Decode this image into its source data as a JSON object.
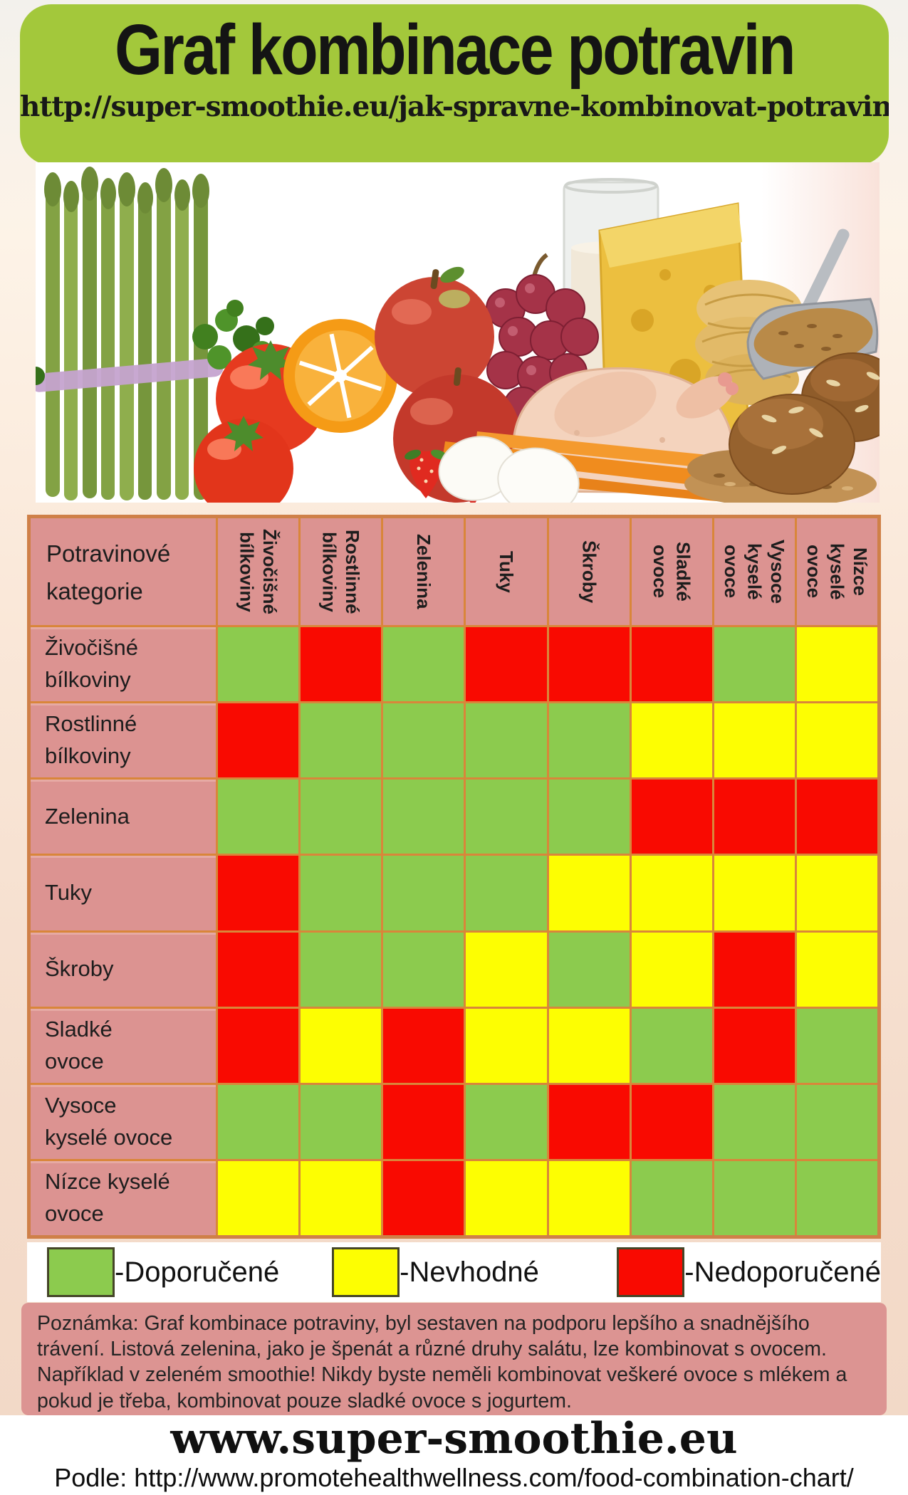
{
  "banner": {
    "title": "Graf kombinace potravin",
    "url": "http://super-smoothie.eu/jak-spravne-kombinovat-potraviny"
  },
  "photo": {
    "items": [
      "asparagus",
      "parsley-greens",
      "tomatoes",
      "orange-slice",
      "apples",
      "grapes",
      "strawberries",
      "carrots",
      "eggs",
      "milk-glass",
      "cheese-wedge",
      "noodle-nest",
      "raw-chicken",
      "grain-scoop",
      "grain-pile",
      "bread-rolls"
    ]
  },
  "chart_data": {
    "type": "heatmap",
    "title": "Graf kombinace potravin",
    "corner_label": "Potravinové kategorie",
    "categories": [
      "Živočišné bílkoviny",
      "Rostlinné bílkoviny",
      "Zelenina",
      "Tuky",
      "Škroby",
      "Sladké ovoce",
      "Vysoce kyselé ovoce",
      "Nízce kyselé ovoce"
    ],
    "matrix": [
      [
        "G",
        "R",
        "G",
        "R",
        "R",
        "R",
        "G",
        "Y"
      ],
      [
        "R",
        "G",
        "G",
        "G",
        "G",
        "Y",
        "Y",
        "Y"
      ],
      [
        "G",
        "G",
        "G",
        "G",
        "G",
        "R",
        "R",
        "R"
      ],
      [
        "R",
        "G",
        "G",
        "G",
        "Y",
        "Y",
        "Y",
        "Y"
      ],
      [
        "R",
        "G",
        "G",
        "Y",
        "G",
        "Y",
        "R",
        "Y"
      ],
      [
        "R",
        "Y",
        "R",
        "Y",
        "Y",
        "G",
        "R",
        "G"
      ],
      [
        "G",
        "G",
        "R",
        "G",
        "R",
        "R",
        "G",
        "G"
      ],
      [
        "Y",
        "Y",
        "R",
        "Y",
        "Y",
        "G",
        "G",
        "G"
      ]
    ],
    "legend": [
      {
        "code": "G",
        "label": "-Doporučené",
        "color": "#8ccb4e"
      },
      {
        "code": "Y",
        "label": "-Nevhodné",
        "color": "#fdfe02"
      },
      {
        "code": "R",
        "label": "-Nedoporučené",
        "color": "#f90a01"
      }
    ],
    "grid": true,
    "legend_position": "bottom"
  },
  "note": {
    "text": "Poznámka: Graf kombinace potraviny, byl sestaven na podporu lepšího a snadnějšího trávení. Listová zelenina, jako je špenát a různé druhy salátu, lze kombinovat s ovocem. Například v zeleném smoothie! Nikdy byste neměli kombinovat veškeré ovoce s mlékem a pokud je třeba, kombinovat pouze sladké ovoce s jogurtem."
  },
  "footer": {
    "site": "www.super-smoothie.eu",
    "source": "Podle: http://www.promotehealthwellness.com/food-combination-chart/"
  },
  "colors": {
    "banner_green": "#a3c83b",
    "table_pink": "#dc9391",
    "grid_orange": "#d9863a",
    "cell_green": "#8ccb4e",
    "cell_yellow": "#fdfe02",
    "cell_red": "#f90a01",
    "legend_bg": "#ffffff",
    "note_bg": "#dc9492"
  }
}
